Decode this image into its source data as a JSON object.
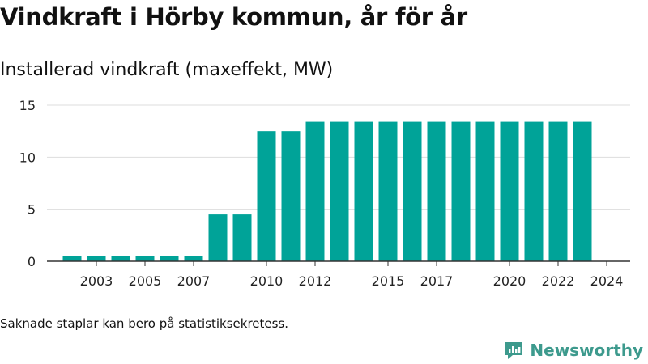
{
  "title": "Vindkraft i Hörby kommun, år för år",
  "subtitle": "Installerad vindkraft (maxeffekt, MW)",
  "footnote": "Saknade staplar kan bero på statistiksekretess.",
  "brand": {
    "name": "Newsworthy",
    "icon": "newsworthy-logo-icon"
  },
  "colors": {
    "bar": "#00a398",
    "grid": "#dddddd",
    "axis": "#333333",
    "brand": "#3d9a8d"
  },
  "chart_data": {
    "type": "bar",
    "title": "Installerad vindkraft (maxeffekt, MW)",
    "xlabel": "",
    "ylabel": "",
    "categories": [
      "2002",
      "2003",
      "2004",
      "2005",
      "2006",
      "2007",
      "2008",
      "2009",
      "2010",
      "2011",
      "2012",
      "2013",
      "2014",
      "2015",
      "2016",
      "2017",
      "2018",
      "2019",
      "2020",
      "2021",
      "2022",
      "2023",
      "2024"
    ],
    "values": [
      0.5,
      0.5,
      0.5,
      0.5,
      0.5,
      0.5,
      4.5,
      4.5,
      12.5,
      12.5,
      13.4,
      13.4,
      13.4,
      13.4,
      13.4,
      13.4,
      13.4,
      13.4,
      13.4,
      13.4,
      13.4,
      13.4,
      null
    ],
    "x_tick_labels": [
      "2003",
      "2005",
      "2007",
      "2010",
      "2012",
      "2015",
      "2017",
      "2020",
      "2022",
      "2024"
    ],
    "y_ticks": [
      0,
      5,
      10,
      15
    ],
    "ylim": [
      0,
      15
    ],
    "grid": true
  }
}
